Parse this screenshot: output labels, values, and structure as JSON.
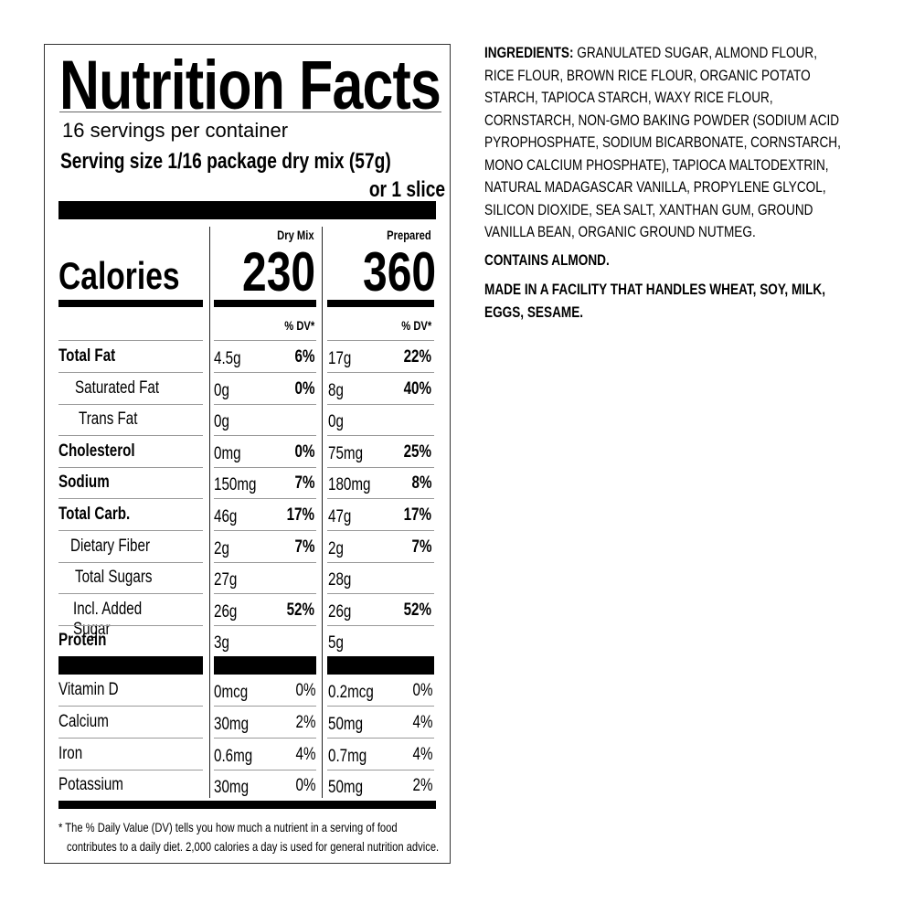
{
  "label": {
    "title": "Nutrition Facts",
    "servings_per_container": "16 servings per container",
    "serving_size": "Serving size 1/16 package dry mix (57g)",
    "serving_size_alt": "or 1 slice",
    "calories_label": "Calories",
    "columns": [
      {
        "header": "Dry Mix",
        "calories": "230",
        "dv_header": "% DV*"
      },
      {
        "header": "Prepared",
        "calories": "360",
        "dv_header": "% DV*"
      }
    ],
    "nutrients": [
      {
        "label": "Total Fat",
        "bold": true,
        "indent": 0,
        "dry": "4.5g",
        "dry_dv": "6%",
        "prep": "17g",
        "prep_dv": "22%"
      },
      {
        "label": "Saturated Fat",
        "bold": false,
        "indent": 1,
        "dry": "0g",
        "dry_dv": "0%",
        "prep": "8g",
        "prep_dv": "40%"
      },
      {
        "label": "Trans Fat",
        "bold": false,
        "indent": 2,
        "dry": "0g",
        "dry_dv": "",
        "prep": "0g",
        "prep_dv": ""
      },
      {
        "label": "Cholesterol",
        "bold": true,
        "indent": 0,
        "dry": "0mg",
        "dry_dv": "0%",
        "prep": "75mg",
        "prep_dv": "25%"
      },
      {
        "label": "Sodium",
        "bold": true,
        "indent": 0,
        "dry": "150mg",
        "dry_dv": "7%",
        "prep": "180mg",
        "prep_dv": "8%"
      },
      {
        "label": "Total Carb.",
        "bold": true,
        "indent": 0,
        "dry": "46g",
        "dry_dv": "17%",
        "prep": "47g",
        "prep_dv": "17%"
      },
      {
        "label": "Dietary Fiber",
        "bold": false,
        "indent": 3,
        "dry": "2g",
        "dry_dv": "7%",
        "prep": "2g",
        "prep_dv": "7%"
      },
      {
        "label": "Total Sugars",
        "bold": false,
        "indent": 1,
        "dry": "27g",
        "dry_dv": "",
        "prep": "28g",
        "prep_dv": ""
      },
      {
        "label": "Incl. Added Sugar",
        "bold": false,
        "indent": 4,
        "dry": "26g",
        "dry_dv": "52%",
        "prep": "26g",
        "prep_dv": "52%"
      },
      {
        "label": "Protein",
        "bold": true,
        "indent": 0,
        "dry": "3g",
        "dry_dv": "",
        "prep": "5g",
        "prep_dv": ""
      }
    ],
    "vitamins": [
      {
        "label": "Vitamin D",
        "dry": "0mcg",
        "dry_dv": "0%",
        "prep": "0.2mcg",
        "prep_dv": "0%"
      },
      {
        "label": "Calcium",
        "dry": "30mg",
        "dry_dv": "2%",
        "prep": "50mg",
        "prep_dv": "4%"
      },
      {
        "label": "Iron",
        "dry": "0.6mg",
        "dry_dv": "4%",
        "prep": "0.7mg",
        "prep_dv": "4%"
      },
      {
        "label": "Potassium",
        "dry": "30mg",
        "dry_dv": "0%",
        "prep": "50mg",
        "prep_dv": "2%"
      }
    ],
    "footnote": [
      "* The % Daily Value (DV) tells you how much a nutrient in a serving of food",
      "contributes to a daily diet. 2,000 calories a day is used for general nutrition advice."
    ]
  },
  "ingredients": {
    "heading": "INGREDIENTS:",
    "lines": [
      " GRANULATED SUGAR, ALMOND FLOUR,",
      "RICE FLOUR, BROWN RICE FLOUR, ORGANIC POTATO",
      "STARCH, TAPIOCA STARCH, WAXY RICE FLOUR,",
      "CORNSTARCH, NON-GMO BAKING POWDER (SODIUM ACID",
      "PYROPHOSPHATE, SODIUM BICARBONATE, CORNSTARCH,",
      "MONO CALCIUM PHOSPHATE), TAPIOCA MALTODEXTRIN,",
      "NATURAL MADAGASCAR VANILLA, PROPYLENE GLYCOL,",
      "SILICON DIOXIDE, SEA SALT, XANTHAN GUM, GROUND",
      "VANILLA BEAN, ORGANIC GROUND NUTMEG."
    ],
    "contains": "CONTAINS ALMOND.",
    "facility": [
      "MADE IN A FACILITY THAT HANDLES WHEAT, SOY, MILK,",
      "EGGS, SESAME."
    ]
  }
}
